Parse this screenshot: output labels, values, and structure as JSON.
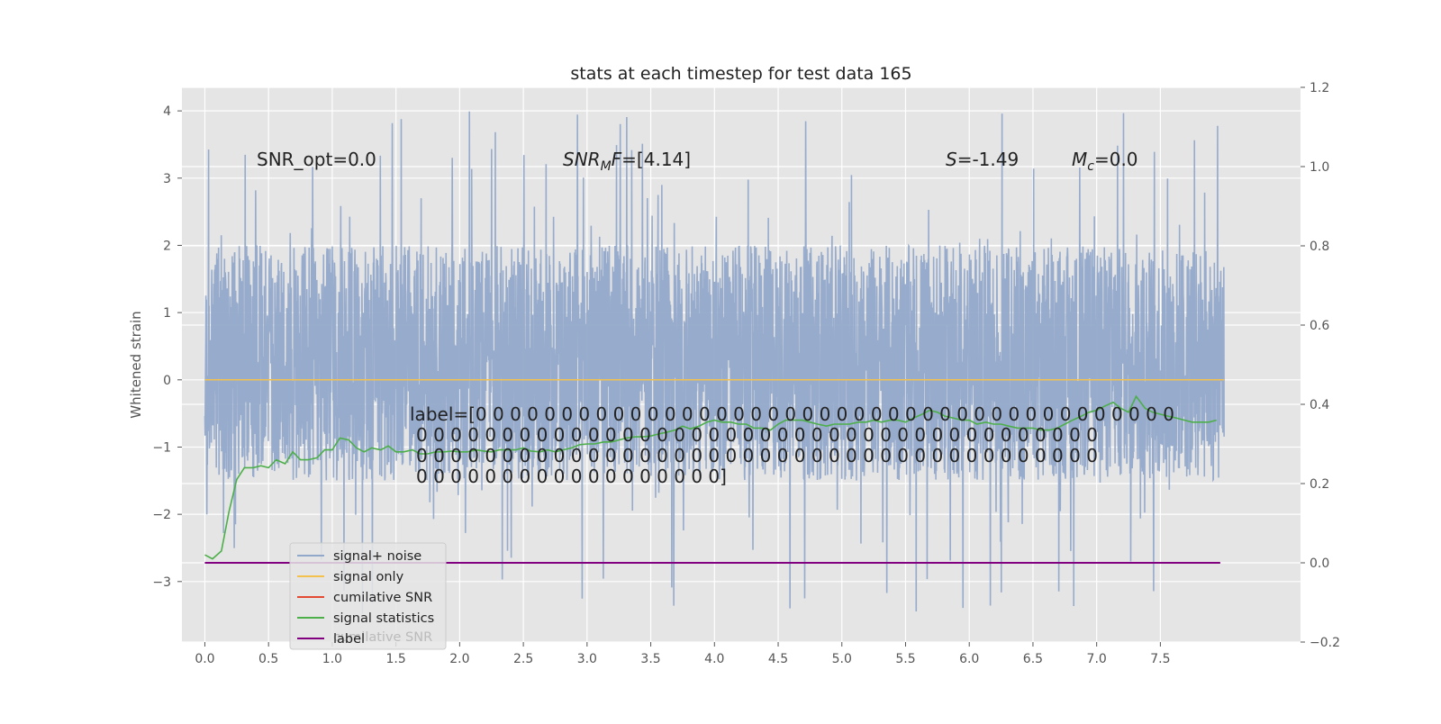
{
  "chart_data": {
    "type": "line",
    "title": "stats at each timestep for test data 165",
    "ylabel": "Whitened strain",
    "xlabel": "",
    "xlim": [
      -0.18,
      8.6
    ],
    "ylim": [
      -3.9,
      4.35
    ],
    "y2lim": [
      -0.2,
      1.2
    ],
    "x_ticks": [
      0.0,
      0.5,
      1.0,
      1.5,
      2.0,
      2.5,
      3.0,
      3.5,
      4.0,
      4.5,
      5.0,
      5.5,
      6.0,
      6.5,
      7.0,
      7.5
    ],
    "x_tick_labels": [
      "0.0",
      "0.5",
      "1.0",
      "1.5",
      "2.0",
      "2.5",
      "3.0",
      "3.5",
      "4.0",
      "4.5",
      "5.0",
      "5.5",
      "6.0",
      "6.5",
      "7.0",
      "7.5"
    ],
    "y_ticks": [
      -3,
      -2,
      -1,
      0,
      1,
      2,
      3,
      4
    ],
    "y_tick_labels": [
      "−3",
      "−2",
      "−1",
      "0",
      "1",
      "2",
      "3",
      "4"
    ],
    "y2_ticks": [
      -0.2,
      0.0,
      0.2,
      0.4,
      0.6,
      0.8,
      1.0,
      1.2
    ],
    "y2_tick_labels": [
      "−0.2",
      "0.0",
      "0.2",
      "0.4",
      "0.6",
      "0.8",
      "1.0",
      "1.2"
    ],
    "grid": true,
    "legend_position": "lower-left",
    "annotations": {
      "snr_opt": "SNR_opt=0.0",
      "snr_mf_var": "SNR",
      "snr_mf_sub": "M",
      "snr_mf_var2": "F",
      "snr_mf_val": "=[4.14]",
      "s_var": "S",
      "s_val": "=-1.49",
      "mc_var": "M",
      "mc_sub": "c",
      "mc_val": "=0.0",
      "label_lines": [
        "label=[0 0 0 0 0 0 0 0 0 0 0 0 0 0 0 0 0 0 0 0 0 0 0 0 0 0 0 0 0 0 0 0 0 0 0 0 0 0 0 0 0",
        "0 0 0 0 0 0 0 0 0 0 0 0 0 0 0 0 0 0 0 0 0 0 0 0 0 0 0 0 0 0 0 0 0 0 0 0 0 0 0 0",
        "0 0 0 0 0 0 0 0 0 0 0 0 0 0 0 0 0 0 0 0 0 0 0 0 0 0 0 0 0 0 0 0 0 0 0 0 0 0 0 0",
        "0 0 0 0 0 0 0 0 0 0 0 0 0 0 0 0 0 0]"
      ]
    },
    "series": [
      {
        "name": "signal+ noise",
        "color": "#92a8ca",
        "axis": "left",
        "x_range": [
          0.0,
          8.0
        ],
        "band_typical": [
          -1.5,
          2.0
        ],
        "band_peaks": [
          -3.5,
          4.0
        ],
        "approx_points": 4096
      },
      {
        "name": "signal only",
        "color": "#f2c14e",
        "axis": "left",
        "x": [
          0.0,
          8.0
        ],
        "y": [
          0.0,
          0.0
        ]
      },
      {
        "name": "cumilative SNR",
        "color": "#e24a33",
        "axis": "right",
        "x": [],
        "y": []
      },
      {
        "name": "signal statistics",
        "color": "#4daf4a",
        "axis": "right",
        "x": [
          0.0,
          0.06,
          0.13,
          0.19,
          0.25,
          0.31,
          0.38,
          0.44,
          0.5,
          0.56,
          0.63,
          0.69,
          0.75,
          0.81,
          0.88,
          0.94,
          1.0,
          1.06,
          1.13,
          1.19,
          1.25,
          1.31,
          1.38,
          1.44,
          1.5,
          1.56,
          1.63,
          1.69,
          1.75,
          1.81,
          1.88,
          1.94,
          2.0,
          2.06,
          2.13,
          2.19,
          2.25,
          2.31,
          2.38,
          2.44,
          2.5,
          2.56,
          2.63,
          2.69,
          2.75,
          2.81,
          2.88,
          2.94,
          3.0,
          3.06,
          3.13,
          3.19,
          3.25,
          3.31,
          3.38,
          3.44,
          3.5,
          3.56,
          3.63,
          3.69,
          3.75,
          3.81,
          3.88,
          3.94,
          4.0,
          4.06,
          4.13,
          4.19,
          4.25,
          4.31,
          4.38,
          4.44,
          4.5,
          4.56,
          4.63,
          4.69,
          4.75,
          4.81,
          4.88,
          4.94,
          5.0,
          5.06,
          5.13,
          5.19,
          5.25,
          5.31,
          5.38,
          5.44,
          5.5,
          5.56,
          5.63,
          5.69,
          5.75,
          5.81,
          5.88,
          5.94,
          6.0,
          6.06,
          6.13,
          6.19,
          6.25,
          6.31,
          6.38,
          6.44,
          6.5,
          6.56,
          6.63,
          6.69,
          6.75,
          6.81,
          6.88,
          6.94,
          7.0,
          7.06,
          7.13,
          7.19,
          7.25,
          7.31,
          7.38,
          7.44,
          7.5,
          7.56,
          7.63,
          7.69,
          7.75,
          7.81,
          7.88,
          7.94
        ],
        "y": [
          0.02,
          0.01,
          0.03,
          0.13,
          0.21,
          0.24,
          0.24,
          0.245,
          0.24,
          0.26,
          0.25,
          0.28,
          0.26,
          0.26,
          0.265,
          0.285,
          0.285,
          0.315,
          0.31,
          0.29,
          0.28,
          0.29,
          0.285,
          0.295,
          0.28,
          0.28,
          0.285,
          0.275,
          0.275,
          0.28,
          0.28,
          0.282,
          0.28,
          0.28,
          0.285,
          0.282,
          0.28,
          0.285,
          0.285,
          0.285,
          0.29,
          0.282,
          0.28,
          0.285,
          0.28,
          0.285,
          0.29,
          0.298,
          0.3,
          0.3,
          0.305,
          0.305,
          0.31,
          0.315,
          0.318,
          0.318,
          0.32,
          0.325,
          0.33,
          0.335,
          0.345,
          0.338,
          0.345,
          0.355,
          0.36,
          0.355,
          0.355,
          0.35,
          0.35,
          0.34,
          0.34,
          0.335,
          0.35,
          0.36,
          0.36,
          0.36,
          0.355,
          0.35,
          0.345,
          0.35,
          0.35,
          0.35,
          0.355,
          0.355,
          0.36,
          0.355,
          0.36,
          0.36,
          0.355,
          0.365,
          0.375,
          0.385,
          0.38,
          0.37,
          0.365,
          0.36,
          0.36,
          0.35,
          0.355,
          0.35,
          0.35,
          0.345,
          0.34,
          0.34,
          0.34,
          0.335,
          0.335,
          0.34,
          0.35,
          0.36,
          0.37,
          0.38,
          0.385,
          0.395,
          0.405,
          0.39,
          0.38,
          0.42,
          0.39,
          0.38,
          0.375,
          0.37,
          0.365,
          0.36,
          0.355,
          0.355,
          0.355,
          0.36
        ]
      },
      {
        "name": "label",
        "color": "#800080",
        "axis": "right",
        "x": [
          0.0,
          7.97
        ],
        "y": [
          0.0,
          0.0
        ]
      }
    ],
    "legend_ghost_text": "cumilative SNR"
  }
}
